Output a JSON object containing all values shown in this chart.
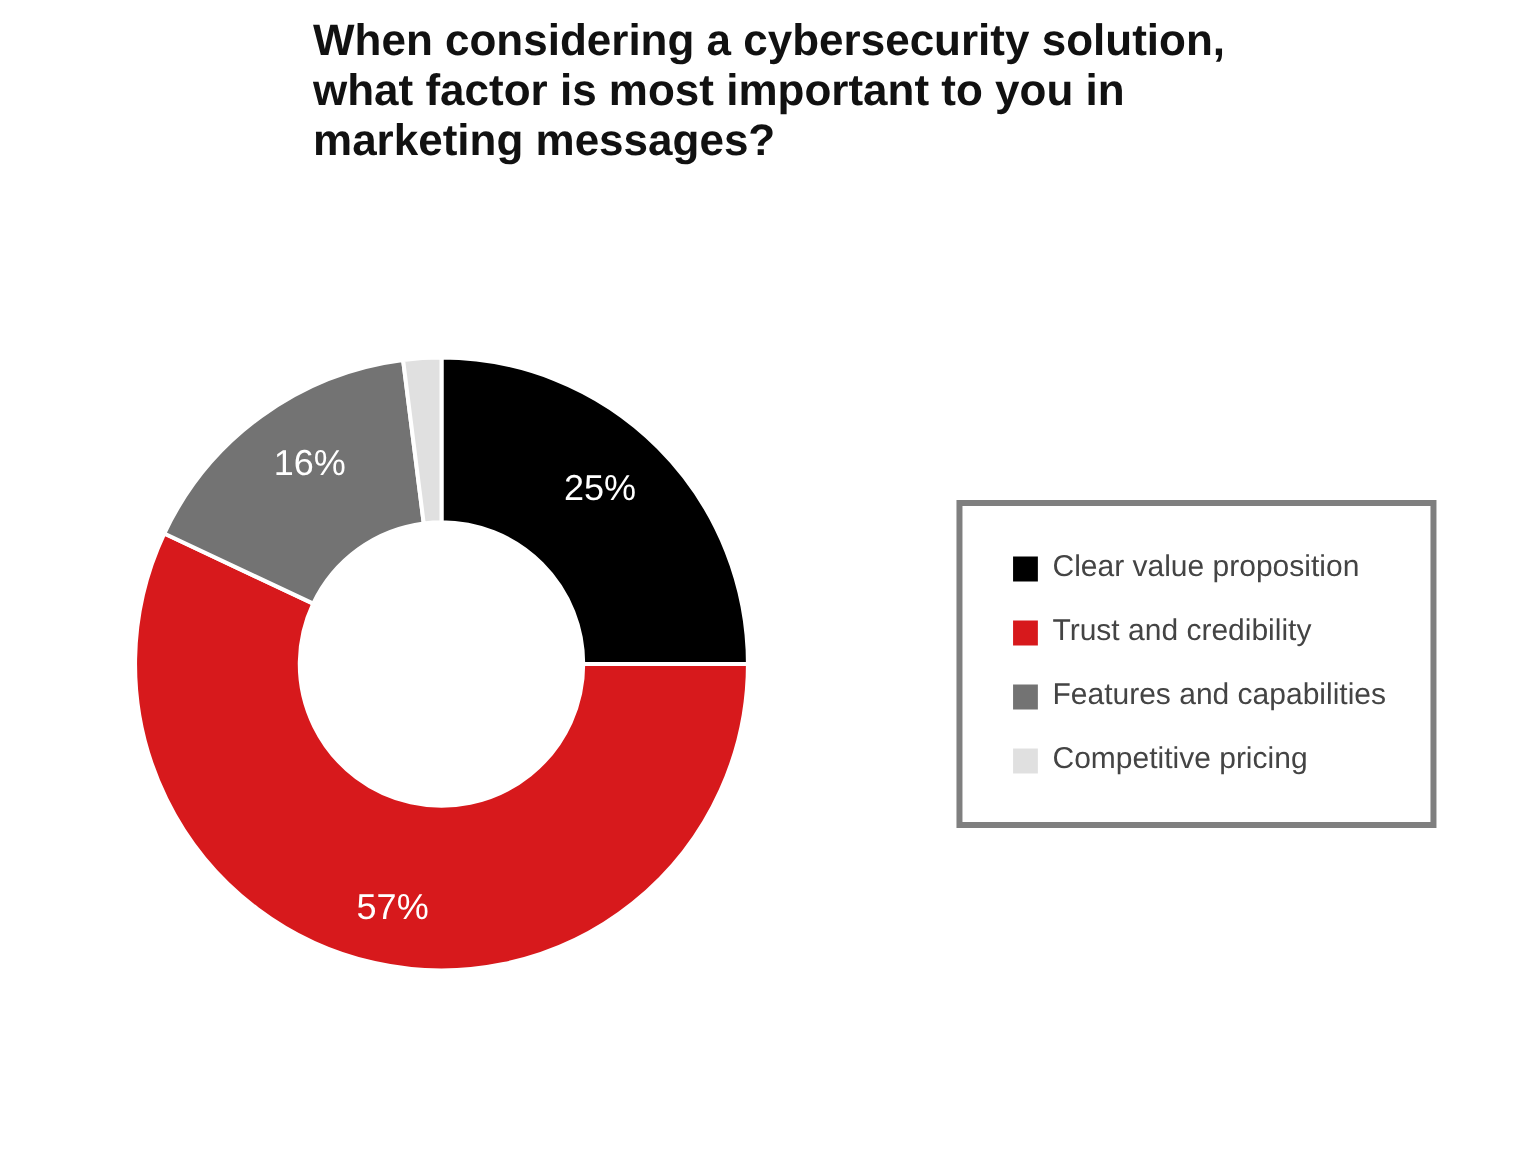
{
  "chart_data": {
    "type": "donut",
    "title": "When considering a cybersecurity solution,\nwhat factor is most important to you in\nmarketing messages?",
    "categories": [
      "Clear value proposition",
      "Trust and credibility",
      "Features and capabilities",
      "Competitive pricing"
    ],
    "values": [
      25,
      57,
      16,
      2
    ],
    "colors": [
      "#000000",
      "#d7191c",
      "#737373",
      "#e0e0e0"
    ],
    "value_labels": [
      "25%",
      "57%",
      "16%",
      null
    ],
    "legend": "right"
  }
}
